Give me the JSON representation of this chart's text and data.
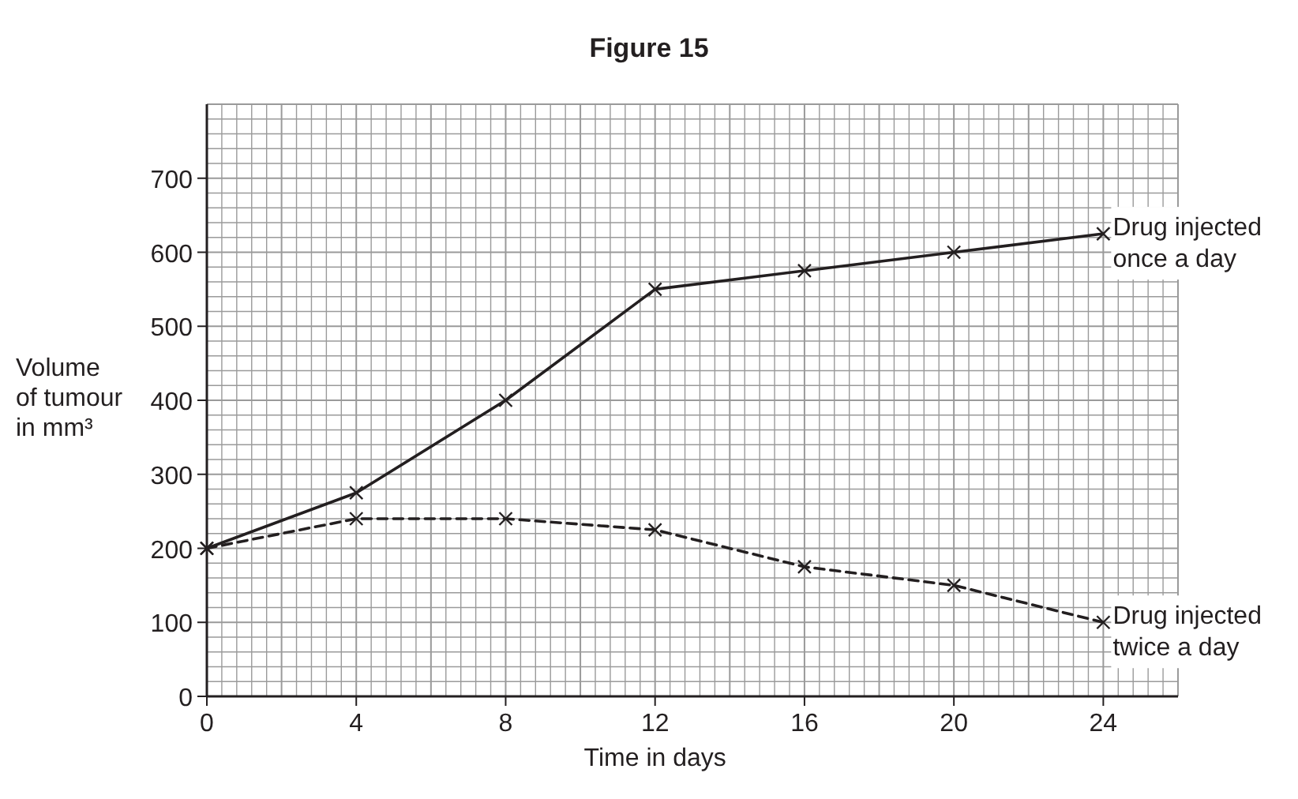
{
  "chart_data": {
    "type": "line",
    "title": "Figure 15",
    "xlabel": "Time in days",
    "ylabel": "Volume\nof tumour\nin mm³",
    "x": [
      0,
      4,
      8,
      12,
      16,
      20,
      24
    ],
    "series": [
      {
        "name": "Drug injected once a day",
        "color": "#231f20",
        "line_style": "solid",
        "values": [
          200,
          275,
          400,
          550,
          575,
          600,
          625
        ]
      },
      {
        "name": "Drug injected twice a day",
        "color": "#231f20",
        "line_style": "dashed",
        "values": [
          200,
          240,
          240,
          225,
          175,
          150,
          100
        ]
      }
    ],
    "xlim": [
      0,
      26
    ],
    "xticks": [
      0,
      4,
      8,
      12,
      16,
      20,
      24
    ],
    "ylim": [
      0,
      800
    ],
    "yticks": [
      0,
      100,
      200,
      300,
      400,
      500,
      600,
      700
    ],
    "grid": true,
    "marker": "cross"
  }
}
